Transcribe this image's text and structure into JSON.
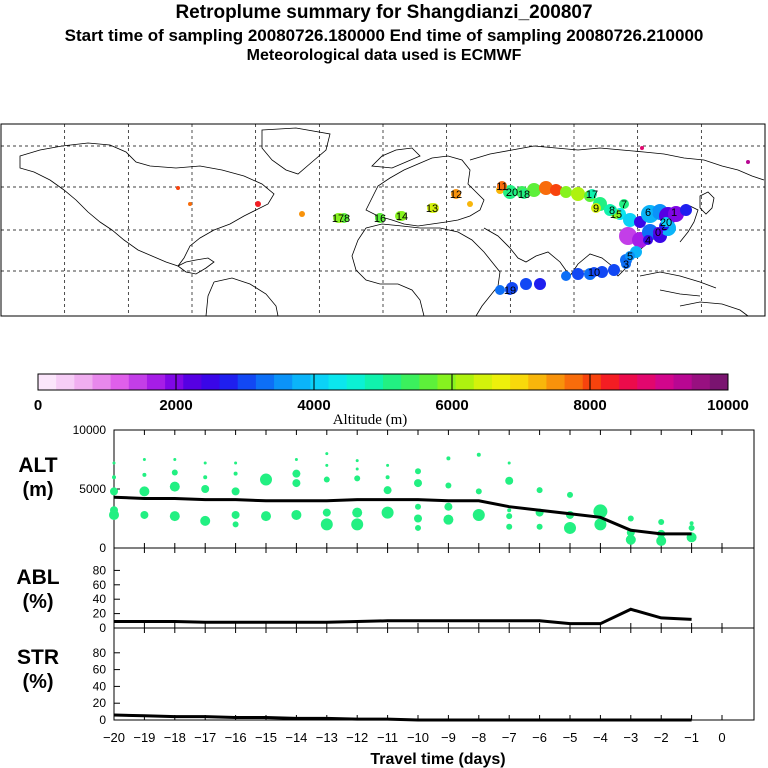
{
  "header": {
    "title": "Retroplume summary for Shangdianzi_200807",
    "subtitle": "Start time of sampling 20080726.180000     End time of sampling 20080726.210000",
    "subtitle2": "Meteorological data used is ECMWF"
  },
  "colorbar": {
    "label": "Altitude (m)",
    "ticks": [
      "0",
      "2000",
      "4000",
      "6000",
      "8000",
      "10000"
    ],
    "colors": [
      "#fbe6fb",
      "#f6cdf6",
      "#f0aef0",
      "#e888ec",
      "#df5fea",
      "#c33ee8",
      "#a61de7",
      "#8007e6",
      "#5600e3",
      "#3a06e8",
      "#1f1fef",
      "#1248f4",
      "#0d6ff6",
      "#0b93f8",
      "#0bb4f9",
      "#0bd2f7",
      "#0be6ee",
      "#0bf1d4",
      "#10f2ad",
      "#22f082",
      "#3bf05d",
      "#5df03a",
      "#86f21f",
      "#aef20f",
      "#d3f20b",
      "#edf00b",
      "#f8d90b",
      "#f8b60b",
      "#f8920b",
      "#f86c0b",
      "#f8430d",
      "#f41d23",
      "#ec0b4b",
      "#e2076e",
      "#d2068c",
      "#b80792",
      "#981080",
      "#7a1470"
    ]
  },
  "map": {
    "start_labels": [
      {
        "t": "20",
        "lon": 91,
        "lat": 36,
        "c": "#22f082"
      },
      {
        "t": "19",
        "lon": 79,
        "lat": -10,
        "c": "#1248f4"
      },
      {
        "t": "18",
        "lon": -8,
        "lat": 48,
        "c": "#5df03a"
      },
      {
        "t": "18",
        "lon": 86,
        "lat": 36,
        "c": "#22f082"
      },
      {
        "t": "17",
        "lon": -15,
        "lat": 49,
        "c": "#86f21f"
      },
      {
        "t": "17",
        "lon": 99,
        "lat": 36,
        "c": "#10f2ad"
      },
      {
        "t": "16",
        "lon": 27,
        "lat": 48,
        "c": "#5df03a"
      },
      {
        "t": "15",
        "lon": 108,
        "lat": 35,
        "c": "#86f21f"
      },
      {
        "t": "14",
        "lon": 40,
        "lat": 48,
        "c": "#86f21f"
      },
      {
        "t": "13",
        "lon": 54,
        "lat": 50,
        "c": "#d3f20b"
      },
      {
        "t": "12",
        "lon": 63,
        "lat": 39,
        "c": "#f8920b"
      },
      {
        "t": "11",
        "lon": 85,
        "lat": 40,
        "c": "#f86c0b"
      },
      {
        "t": "10",
        "lon": 131,
        "lat": -8,
        "c": "#1248f4"
      },
      {
        "t": "9",
        "lon": 108,
        "lat": 46,
        "c": "#d3f20b"
      },
      {
        "t": "8",
        "lon": 118,
        "lat": 33,
        "c": "#10f2ad"
      },
      {
        "t": "7",
        "lon": 125,
        "lat": 38,
        "c": "#22f082"
      },
      {
        "t": "6",
        "lon": 137,
        "lat": 29,
        "c": "#0bb4f9"
      },
      {
        "t": "5",
        "lon": 135,
        "lat": 22,
        "c": "#0b93f8"
      },
      {
        "t": "4",
        "lon": 124,
        "lat": 22,
        "c": "#3a06e8"
      },
      {
        "t": "3",
        "lon": 137,
        "lat": 2,
        "c": "#0d6ff6"
      },
      {
        "t": "2",
        "lon": 145,
        "lat": 28,
        "c": "#1f1fef"
      },
      {
        "t": "1",
        "lon": 148,
        "lat": 30,
        "c": "#8007e6"
      },
      {
        "t": "0",
        "lon": 141,
        "lat": 28,
        "c": "#5600e3"
      },
      {
        "t": "20",
        "lon": 146,
        "lat": 20,
        "c": "#0bd2f7"
      }
    ]
  },
  "chart_data": [
    {
      "type": "scatter",
      "panel": "ALT",
      "ylabel_line1": "ALT",
      "ylabel_line2": "(m)",
      "ylim": [
        0,
        10000
      ],
      "yticks": [
        "0",
        "5000",
        "10000"
      ],
      "xlim": [
        -20,
        0
      ],
      "line": {
        "x": [
          -20,
          -19,
          -18,
          -17,
          -16,
          -15,
          -14,
          -13,
          -12,
          -11,
          -10,
          -9,
          -8,
          -7,
          -6,
          -5,
          -4,
          -3,
          -2,
          -1
        ],
        "y": [
          4300,
          4200,
          4200,
          4100,
          4100,
          4000,
          4000,
          4000,
          4100,
          4100,
          4100,
          4000,
          4000,
          3500,
          3200,
          2900,
          2600,
          1500,
          1200,
          1200
        ]
      },
      "dots": [
        {
          "x": -20,
          "y": 2800,
          "r": 5
        },
        {
          "x": -20,
          "y": 3200,
          "r": 4
        },
        {
          "x": -20,
          "y": 4800,
          "r": 4
        },
        {
          "x": -20,
          "y": 6000,
          "r": 2
        },
        {
          "x": -20,
          "y": 7200,
          "r": 1.5
        },
        {
          "x": -19,
          "y": 2800,
          "r": 4
        },
        {
          "x": -19,
          "y": 4800,
          "r": 5
        },
        {
          "x": -19,
          "y": 6200,
          "r": 2
        },
        {
          "x": -19,
          "y": 7500,
          "r": 1.5
        },
        {
          "x": -18,
          "y": 2700,
          "r": 5
        },
        {
          "x": -18,
          "y": 5200,
          "r": 5
        },
        {
          "x": -18,
          "y": 6400,
          "r": 3
        },
        {
          "x": -18,
          "y": 7500,
          "r": 1.5
        },
        {
          "x": -17,
          "y": 2300,
          "r": 5
        },
        {
          "x": -17,
          "y": 5000,
          "r": 4
        },
        {
          "x": -17,
          "y": 6000,
          "r": 2
        },
        {
          "x": -17,
          "y": 7200,
          "r": 1.5
        },
        {
          "x": -16,
          "y": 2000,
          "r": 3
        },
        {
          "x": -16,
          "y": 2800,
          "r": 4
        },
        {
          "x": -16,
          "y": 4800,
          "r": 4
        },
        {
          "x": -16,
          "y": 6300,
          "r": 2
        },
        {
          "x": -16,
          "y": 7200,
          "r": 1.5
        },
        {
          "x": -15,
          "y": 2700,
          "r": 5
        },
        {
          "x": -15,
          "y": 5800,
          "r": 6
        },
        {
          "x": -14,
          "y": 2800,
          "r": 5
        },
        {
          "x": -14,
          "y": 5500,
          "r": 4
        },
        {
          "x": -14,
          "y": 6300,
          "r": 4
        },
        {
          "x": -14,
          "y": 7500,
          "r": 1.5
        },
        {
          "x": -13,
          "y": 2000,
          "r": 6
        },
        {
          "x": -13,
          "y": 3000,
          "r": 4
        },
        {
          "x": -13,
          "y": 5800,
          "r": 3
        },
        {
          "x": -13,
          "y": 7000,
          "r": 1.5
        },
        {
          "x": -13,
          "y": 8000,
          "r": 1.5
        },
        {
          "x": -12,
          "y": 2000,
          "r": 6
        },
        {
          "x": -12,
          "y": 3000,
          "r": 5
        },
        {
          "x": -12,
          "y": 5900,
          "r": 3
        },
        {
          "x": -12,
          "y": 6700,
          "r": 1.5
        },
        {
          "x": -12,
          "y": 7400,
          "r": 1.5
        },
        {
          "x": -11,
          "y": 3000,
          "r": 6
        },
        {
          "x": -11,
          "y": 4900,
          "r": 4
        },
        {
          "x": -11,
          "y": 6000,
          "r": 2
        },
        {
          "x": -11,
          "y": 7000,
          "r": 1.5
        },
        {
          "x": -10,
          "y": 1700,
          "r": 3
        },
        {
          "x": -10,
          "y": 2500,
          "r": 4
        },
        {
          "x": -10,
          "y": 3500,
          "r": 3
        },
        {
          "x": -10,
          "y": 5500,
          "r": 4
        },
        {
          "x": -10,
          "y": 6500,
          "r": 3
        },
        {
          "x": -9,
          "y": 2400,
          "r": 5
        },
        {
          "x": -9,
          "y": 3500,
          "r": 4
        },
        {
          "x": -9,
          "y": 5300,
          "r": 3
        },
        {
          "x": -9,
          "y": 7600,
          "r": 2
        },
        {
          "x": -8,
          "y": 2800,
          "r": 6
        },
        {
          "x": -8,
          "y": 4800,
          "r": 3
        },
        {
          "x": -8,
          "y": 7900,
          "r": 2
        },
        {
          "x": -7,
          "y": 1800,
          "r": 3
        },
        {
          "x": -7,
          "y": 2700,
          "r": 3
        },
        {
          "x": -7,
          "y": 3200,
          "r": 2
        },
        {
          "x": -7,
          "y": 5700,
          "r": 4
        },
        {
          "x": -7,
          "y": 7200,
          "r": 1.5
        },
        {
          "x": -6,
          "y": 1800,
          "r": 3
        },
        {
          "x": -6,
          "y": 3000,
          "r": 4
        },
        {
          "x": -6,
          "y": 4900,
          "r": 3
        },
        {
          "x": -5,
          "y": 1700,
          "r": 6
        },
        {
          "x": -5,
          "y": 2800,
          "r": 4
        },
        {
          "x": -5,
          "y": 4500,
          "r": 3
        },
        {
          "x": -4,
          "y": 2000,
          "r": 6
        },
        {
          "x": -4,
          "y": 3100,
          "r": 7
        },
        {
          "x": -3,
          "y": 700,
          "r": 5
        },
        {
          "x": -3,
          "y": 1300,
          "r": 4
        },
        {
          "x": -3,
          "y": 2500,
          "r": 3
        },
        {
          "x": -2,
          "y": 600,
          "r": 5
        },
        {
          "x": -2,
          "y": 1200,
          "r": 4
        },
        {
          "x": -2,
          "y": 2200,
          "r": 3
        },
        {
          "x": -1,
          "y": 900,
          "r": 5
        },
        {
          "x": -1,
          "y": 1700,
          "r": 3
        },
        {
          "x": -1,
          "y": 2100,
          "r": 2
        }
      ],
      "dot_color": "#22f082"
    },
    {
      "type": "line",
      "panel": "ABL",
      "ylabel_line1": "ABL",
      "ylabel_line2": "(%)",
      "ylim": [
        0,
        100
      ],
      "yticks": [
        "0",
        "20",
        "40",
        "60",
        "80"
      ],
      "xlim": [
        -20,
        0
      ],
      "x": [
        -20,
        -19,
        -18,
        -17,
        -16,
        -15,
        -14,
        -13,
        -12,
        -11,
        -10,
        -9,
        -8,
        -7,
        -6,
        -5,
        -4,
        -3,
        -2,
        -1
      ],
      "y": [
        9,
        9,
        9,
        8,
        8,
        8,
        8,
        8,
        9,
        10,
        10,
        10,
        10,
        10,
        10,
        6,
        6,
        26,
        14,
        12
      ]
    },
    {
      "type": "line",
      "panel": "STR",
      "ylabel_line1": "STR",
      "ylabel_line2": "(%)",
      "ylim": [
        0,
        100
      ],
      "yticks": [
        "0",
        "20",
        "40",
        "60",
        "80"
      ],
      "xlim": [
        -20,
        0
      ],
      "x": [
        -20,
        -19,
        -18,
        -17,
        -16,
        -15,
        -14,
        -13,
        -12,
        -11,
        -10,
        -9,
        -8,
        -7,
        -6,
        -5,
        -4,
        -3,
        -2,
        -1
      ],
      "y": [
        6,
        5,
        4,
        4,
        3,
        3,
        2,
        2,
        1,
        1,
        0,
        0,
        0,
        0,
        0,
        0,
        0,
        0,
        0,
        0
      ],
      "xticks": [
        "−20",
        "−19",
        "−18",
        "−17",
        "−16",
        "−15",
        "−14",
        "−13",
        "−12",
        "−11",
        "−10",
        "−9",
        "−8",
        "−7",
        "−6",
        "−5",
        "−4",
        "−3",
        "−2",
        "−1",
        "0"
      ],
      "xlabel": "Travel time (days)"
    }
  ]
}
